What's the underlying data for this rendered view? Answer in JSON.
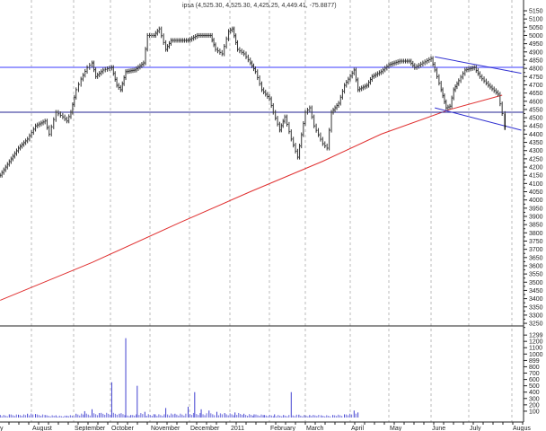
{
  "chart_data": {
    "type": "bar",
    "title": "ipsa (4,525.30, 4,525.30, 4,425.25, 4,449.41, -75.8877)",
    "colors": {
      "price_bars": "#333333",
      "moving_average": "#e03030",
      "resistance": "#7b7bff",
      "support": "#202090",
      "channel": "#3030d0",
      "volume": "#4040d0",
      "grid": "#bbbbbb"
    },
    "x_tick_labels": [
      {
        "label": "y",
        "date": "2010-07-01"
      },
      {
        "label": "August",
        "date": "2010-08-01"
      },
      {
        "label": "September",
        "date": "2010-09-01"
      },
      {
        "label": "October",
        "date": "2010-10-01"
      },
      {
        "label": "November",
        "date": "2010-11-01"
      },
      {
        "label": "December",
        "date": "2010-12-01"
      },
      {
        "label": "2011",
        "date": "2011-01-01"
      },
      {
        "label": "February",
        "date": "2011-02-01"
      },
      {
        "label": "March",
        "date": "2011-03-01"
      },
      {
        "label": "April",
        "date": "2011-04-01"
      },
      {
        "label": "May",
        "date": "2011-05-01"
      },
      {
        "label": "June",
        "date": "2011-06-01"
      },
      {
        "label": "July",
        "date": "2011-07-01"
      },
      {
        "label": "Augus",
        "date": "2011-08-01"
      }
    ],
    "price_axis": {
      "ylim": [
        3250,
        5150
      ],
      "ticks": [
        "5150",
        "5100",
        "5050",
        "5000",
        "4950",
        "4900",
        "4850",
        "4800",
        "4750",
        "4700",
        "4650",
        "4600",
        "4550",
        "4500",
        "4450",
        "4400",
        "4350",
        "4300",
        "4250",
        "4200",
        "4150",
        "4100",
        "4050",
        "4000",
        "3950",
        "3900",
        "3850",
        "3800",
        "3750",
        "3700",
        "3650",
        "3600",
        "3550",
        "3500",
        "3450",
        "3400",
        "3350",
        "3300",
        "3250"
      ]
    },
    "volume_axis": {
      "ylim": [
        0,
        1350
      ],
      "ticks": [
        "1299",
        "1200",
        "1100",
        "1000",
        "899",
        "800",
        "700",
        "600",
        "500",
        "400",
        "300",
        "200",
        "100"
      ]
    },
    "price_closes": [
      [
        "2010-07-08",
        4150
      ],
      [
        "2010-07-15",
        4233
      ],
      [
        "2010-07-22",
        4315
      ],
      [
        "2010-07-29",
        4370
      ],
      [
        "2010-08-04",
        4450
      ],
      [
        "2010-08-11",
        4480
      ],
      [
        "2010-08-14",
        4400
      ],
      [
        "2010-08-19",
        4533
      ],
      [
        "2010-08-24",
        4505
      ],
      [
        "2010-08-27",
        4480
      ],
      [
        "2010-08-30",
        4533
      ],
      [
        "2010-09-03",
        4670
      ],
      [
        "2010-09-07",
        4735
      ],
      [
        "2010-09-12",
        4805
      ],
      [
        "2010-09-16",
        4833
      ],
      [
        "2010-09-19",
        4750
      ],
      [
        "2010-09-25",
        4790
      ],
      [
        "2010-10-02",
        4805
      ],
      [
        "2010-10-06",
        4697
      ],
      [
        "2010-10-09",
        4670
      ],
      [
        "2010-10-13",
        4780
      ],
      [
        "2010-10-20",
        4790
      ],
      [
        "2010-10-27",
        4833
      ],
      [
        "2010-10-30",
        5000
      ],
      [
        "2010-11-04",
        5000
      ],
      [
        "2010-11-08",
        5040
      ],
      [
        "2010-11-13",
        4915
      ],
      [
        "2010-11-17",
        4970
      ],
      [
        "2010-11-23",
        4970
      ],
      [
        "2010-11-30",
        4970
      ],
      [
        "2010-12-07",
        5000
      ],
      [
        "2010-12-17",
        5000
      ],
      [
        "2010-12-21",
        4915
      ],
      [
        "2010-12-26",
        4888
      ],
      [
        "2010-12-31",
        5025
      ],
      [
        "2011-01-03",
        5040
      ],
      [
        "2011-01-07",
        4915
      ],
      [
        "2011-01-12",
        4888
      ],
      [
        "2011-01-17",
        4833
      ],
      [
        "2011-01-21",
        4780
      ],
      [
        "2011-01-26",
        4670
      ],
      [
        "2011-02-01",
        4615
      ],
      [
        "2011-02-04",
        4533
      ],
      [
        "2011-02-09",
        4425
      ],
      [
        "2011-02-13",
        4505
      ],
      [
        "2011-02-18",
        4370
      ],
      [
        "2011-02-23",
        4260
      ],
      [
        "2011-03-01",
        4533
      ],
      [
        "2011-03-04",
        4560
      ],
      [
        "2011-03-07",
        4450
      ],
      [
        "2011-03-13",
        4342
      ],
      [
        "2011-03-16",
        4315
      ],
      [
        "2011-03-19",
        4533
      ],
      [
        "2011-03-24",
        4588
      ],
      [
        "2011-03-28",
        4697
      ],
      [
        "2011-04-04",
        4790
      ],
      [
        "2011-04-07",
        4670
      ],
      [
        "2011-04-14",
        4697
      ],
      [
        "2011-04-18",
        4750
      ],
      [
        "2011-04-25",
        4780
      ],
      [
        "2011-05-01",
        4822
      ],
      [
        "2011-05-09",
        4844
      ],
      [
        "2011-05-16",
        4844
      ],
      [
        "2011-05-20",
        4805
      ],
      [
        "2011-05-26",
        4833
      ],
      [
        "2011-06-01",
        4860
      ],
      [
        "2011-06-04",
        4790
      ],
      [
        "2011-06-09",
        4670
      ],
      [
        "2011-06-13",
        4560
      ],
      [
        "2011-06-16",
        4570
      ],
      [
        "2011-06-19",
        4670
      ],
      [
        "2011-06-23",
        4725
      ],
      [
        "2011-06-28",
        4790
      ],
      [
        "2011-07-05",
        4805
      ],
      [
        "2011-07-09",
        4750
      ],
      [
        "2011-07-15",
        4697
      ],
      [
        "2011-07-22",
        4643
      ],
      [
        "2011-07-25",
        4525.3
      ],
      [
        "2011-07-27",
        4449.41
      ]
    ],
    "last_bar": {
      "open": 4525.3,
      "high": 4525.3,
      "low": 4425.25,
      "close": 4449.41,
      "change": -75.8877
    },
    "moving_average": [
      [
        "2010-07-08",
        3390
      ],
      [
        "2010-09-16",
        3620
      ],
      [
        "2010-11-23",
        3860
      ],
      [
        "2011-01-17",
        4050
      ],
      [
        "2011-03-13",
        4235
      ],
      [
        "2011-04-25",
        4400
      ],
      [
        "2011-06-16",
        4550
      ],
      [
        "2011-07-25",
        4637
      ]
    ],
    "horizontal_lines": [
      {
        "value": 4806,
        "role": "resistance"
      },
      {
        "value": 4533,
        "role": "support"
      }
    ],
    "channel_lines": [
      {
        "from": [
          "2011-06-04",
          4870
        ],
        "to": [
          "2011-08-08",
          4770
        ]
      },
      {
        "from": [
          "2011-06-04",
          4560
        ],
        "to": [
          "2011-08-08",
          4424
        ]
      }
    ],
    "volume": [
      [
        "2010-07-08",
        40
      ],
      [
        "2010-07-15",
        50
      ],
      [
        "2010-07-22",
        45
      ],
      [
        "2010-07-29",
        60
      ],
      [
        "2010-08-04",
        55
      ],
      [
        "2010-08-11",
        40
      ],
      [
        "2010-08-19",
        35
      ],
      [
        "2010-08-27",
        30
      ],
      [
        "2010-09-03",
        60
      ],
      [
        "2010-09-10",
        100
      ],
      [
        "2010-09-16",
        130
      ],
      [
        "2010-09-22",
        70
      ],
      [
        "2010-10-02",
        555
      ],
      [
        "2010-10-08",
        60
      ],
      [
        "2010-10-13",
        1250
      ],
      [
        "2010-10-17",
        40
      ],
      [
        "2010-10-22",
        500
      ],
      [
        "2010-10-28",
        90
      ],
      [
        "2010-11-05",
        50
      ],
      [
        "2010-11-13",
        150
      ],
      [
        "2010-11-20",
        60
      ],
      [
        "2010-11-30",
        170
      ],
      [
        "2010-12-05",
        400
      ],
      [
        "2010-12-10",
        130
      ],
      [
        "2010-12-16",
        110
      ],
      [
        "2010-12-22",
        90
      ],
      [
        "2010-12-28",
        70
      ],
      [
        "2011-01-05",
        80
      ],
      [
        "2011-01-12",
        60
      ],
      [
        "2011-01-20",
        50
      ],
      [
        "2011-01-28",
        40
      ],
      [
        "2011-02-05",
        50
      ],
      [
        "2011-02-12",
        40
      ],
      [
        "2011-02-18",
        400
      ],
      [
        "2011-02-24",
        45
      ],
      [
        "2011-03-04",
        40
      ],
      [
        "2011-03-12",
        35
      ],
      [
        "2011-03-20",
        40
      ],
      [
        "2011-03-28",
        50
      ],
      [
        "2011-04-04",
        110
      ],
      [
        "2011-04-07",
        80
      ]
    ]
  }
}
